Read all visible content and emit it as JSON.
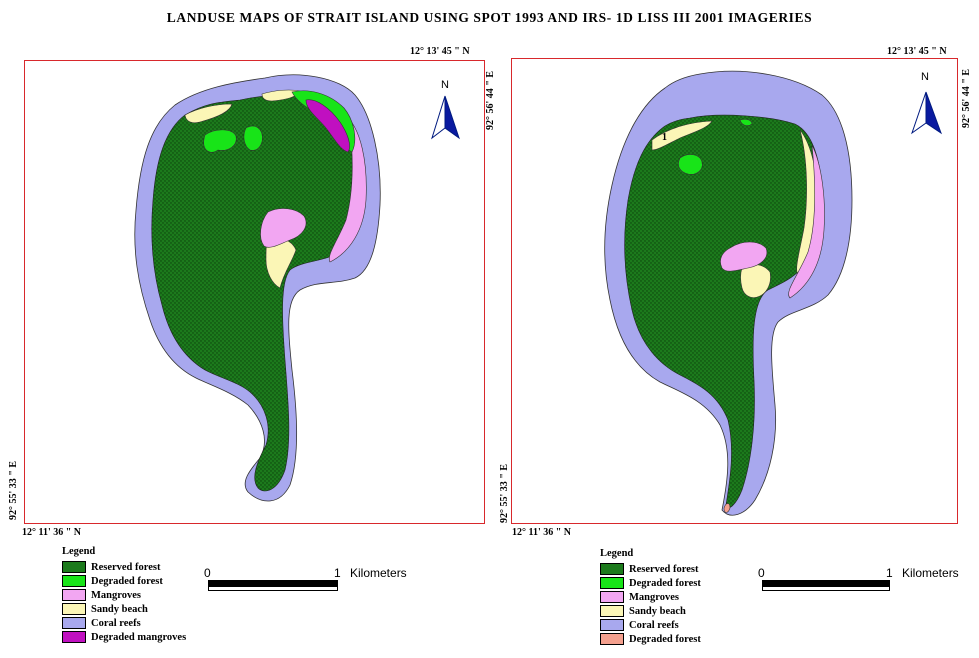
{
  "title": "LANDUSE MAPS OF STRAIT ISLAND USING SPOT 1993 AND IRS- 1D LISS III 2001 IMAGERIES",
  "colors": {
    "reserved_forest": "#1c7a1c",
    "degraded_forest": "#18e418",
    "mangroves": "#f2a6f2",
    "sandy_beach": "#fbf6b6",
    "coral_reefs": "#a8a8ee",
    "degraded_mangroves": "#c010c0",
    "degraded_forest_2001": "#f4a08e",
    "frame": "#d8282c"
  },
  "maps": [
    {
      "id": "1993",
      "coord_top_right": "12° 13' 45 \" N",
      "coord_right": "92° 56' 44 \" E",
      "coord_left": "92° 55' 33 \" E",
      "coord_bottom_left": "12° 11' 36 \" N",
      "north_label": "N",
      "legend_title": "Legend",
      "legend": [
        {
          "label": "Reserved forest",
          "color": "#1c7a1c"
        },
        {
          "label": "Degraded forest",
          "color": "#18e418"
        },
        {
          "label": "Mangroves",
          "color": "#f2a6f2"
        },
        {
          "label": "Sandy beach",
          "color": "#fbf6b6"
        },
        {
          "label": "Coral reefs",
          "color": "#a8a8ee"
        },
        {
          "label": "Degraded mangroves",
          "color": "#c010c0"
        }
      ],
      "scale_start": "0",
      "scale_end": "1",
      "scale_unit": "Kilometers"
    },
    {
      "id": "2001",
      "coord_top_right": "12° 13' 45 \" N",
      "coord_right": "92° 56' 44 \" E",
      "coord_left": "92° 55' 33 \" E",
      "coord_bottom_left": "12° 11' 36 \" N",
      "north_label": "N",
      "map_marker": "1",
      "legend_title": "Legend",
      "legend": [
        {
          "label": "Reserved forest",
          "color": "#1c7a1c"
        },
        {
          "label": "Degraded forest",
          "color": "#18e418"
        },
        {
          "label": "Mangroves",
          "color": "#f2a6f2"
        },
        {
          "label": "Sandy beach",
          "color": "#fbf6b6"
        },
        {
          "label": "Coral reefs",
          "color": "#a8a8ee"
        },
        {
          "label": "Degraded forest",
          "color": "#f4a08e"
        }
      ],
      "scale_start": "0",
      "scale_end": "1",
      "scale_unit": "Kilometers"
    }
  ]
}
